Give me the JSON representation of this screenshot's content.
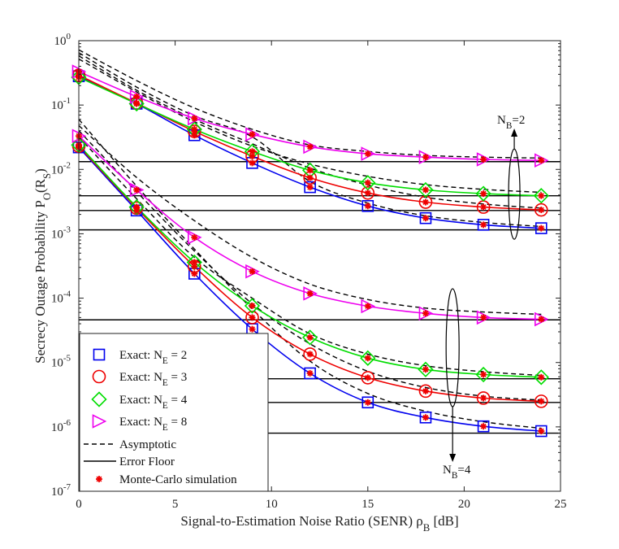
{
  "chart_data": {
    "type": "line",
    "xlabel": "Signal-to-Estimation Noise Ratio (SENR) ρB [dB]",
    "ylabel": "Secrecy Outage Probability PO(RS)",
    "xlim": [
      0,
      25
    ],
    "ylim": [
      1e-07,
      1
    ],
    "y_scale": "log",
    "grid": false,
    "legend_placement": "bottom-left",
    "x_ticks": [
      "0",
      "5",
      "10",
      "15",
      "20",
      "25"
    ],
    "y_ticks": [
      {
        "value": 1,
        "exp": "0"
      },
      {
        "value": 0.1,
        "exp": "-1"
      },
      {
        "value": 0.01,
        "exp": "-2"
      },
      {
        "value": 0.001,
        "exp": "-3"
      },
      {
        "value": 0.0001,
        "exp": "-4"
      },
      {
        "value": 1e-05,
        "exp": "-5"
      },
      {
        "value": 1e-06,
        "exp": "-6"
      },
      {
        "value": 1e-07,
        "exp": "-7"
      }
    ],
    "x": [
      0,
      3,
      6,
      9,
      12,
      15,
      18,
      21,
      24
    ],
    "annotations": [
      {
        "base": "N",
        "sub": "B",
        "rest": "=2"
      },
      {
        "base": "N",
        "sub": "B",
        "rest": "=4"
      }
    ],
    "legend": [
      {
        "text": "Exact: N",
        "sub": "E",
        "rest": " = 2",
        "marker": "square",
        "color": "#0000ee"
      },
      {
        "text": "Exact: N",
        "sub": "E",
        "rest": " = 3",
        "marker": "circle",
        "color": "#ee0000"
      },
      {
        "text": "Exact: N",
        "sub": "E",
        "rest": " = 4",
        "marker": "diamond",
        "color": "#00dd00"
      },
      {
        "text": "Exact: N",
        "sub": "E",
        "rest": " = 8",
        "marker": "triangle-right",
        "color": "#ee00ee"
      },
      {
        "text": "Asymptotic",
        "marker": "dashed-line",
        "color": "#000000"
      },
      {
        "text": "Error Floor",
        "marker": "solid-line",
        "color": "#000000"
      },
      {
        "text": "Monte-Carlo simulation",
        "marker": "star",
        "color": "#ee0000"
      }
    ],
    "series": [
      {
        "group": "NB=2",
        "NE": 2,
        "marker": "square",
        "color": "#0000ee",
        "values": [
          0.28,
          0.105,
          0.034,
          0.0126,
          0.0053,
          0.0027,
          0.00175,
          0.00138,
          0.00122
        ],
        "asymptotic": [
          0.65,
          0.19,
          0.068,
          0.032,
          0.0065,
          0.003,
          0.0019,
          0.0015,
          0.0013
        ],
        "error_floor": 0.00115
      },
      {
        "group": "NB=2",
        "NE": 3,
        "marker": "circle",
        "color": "#ee0000",
        "values": [
          0.29,
          0.107,
          0.039,
          0.016,
          0.0074,
          0.0043,
          0.0031,
          0.0026,
          0.00235
        ],
        "asymptotic": [
          0.58,
          0.17,
          0.06,
          0.025,
          0.0105,
          0.0057,
          0.0037,
          0.0029,
          0.0025
        ],
        "error_floor": 0.0023
      },
      {
        "group": "NB=2",
        "NE": 4,
        "marker": "diamond",
        "color": "#00dd00",
        "values": [
          0.27,
          0.105,
          0.042,
          0.019,
          0.0097,
          0.0062,
          0.0048,
          0.0042,
          0.0039
        ],
        "asymptotic": [
          0.52,
          0.16,
          0.055,
          0.023,
          0.0121,
          0.0078,
          0.0058,
          0.0049,
          0.0044
        ],
        "error_floor": 0.0039
      },
      {
        "group": "NB=2",
        "NE": 8,
        "marker": "triangle-right",
        "color": "#ee00ee",
        "values": [
          0.33,
          0.135,
          0.062,
          0.035,
          0.0225,
          0.0175,
          0.0155,
          0.0143,
          0.0138
        ],
        "asymptotic": [
          0.72,
          0.24,
          0.09,
          0.042,
          0.024,
          0.019,
          0.0165,
          0.0155,
          0.015
        ],
        "error_floor": 0.0132
      },
      {
        "group": "NB=4",
        "NE": 2,
        "marker": "square",
        "color": "#0000ee",
        "values": [
          0.022,
          0.0023,
          0.00024,
          3.3e-05,
          6.8e-06,
          2.4e-06,
          1.4e-06,
          1.02e-06,
          8.6e-07
        ],
        "asymptotic": [
          0.06,
          0.0055,
          0.00058,
          6.8e-05,
          1.05e-05,
          3.3e-06,
          1.75e-06,
          1.2e-06,
          9.5e-07
        ],
        "error_floor": 8e-07
      },
      {
        "group": "NB=4",
        "NE": 3,
        "marker": "circle",
        "color": "#ee0000",
        "values": [
          0.023,
          0.0025,
          0.00031,
          5e-05,
          1.35e-05,
          5.8e-06,
          3.6e-06,
          2.8e-06,
          2.5e-06
        ],
        "asymptotic": [
          0.04,
          0.0045,
          0.00054,
          8.2e-05,
          1.95e-05,
          7.3e-06,
          4.1e-06,
          3e-06,
          2.6e-06
        ],
        "error_floor": 2.4e-06
      },
      {
        "group": "NB=4",
        "NE": 4,
        "marker": "diamond",
        "color": "#00dd00",
        "values": [
          0.024,
          0.0026,
          0.00036,
          7.6e-05,
          2.45e-05,
          1.17e-05,
          7.8e-06,
          6.5e-06,
          5.9e-06
        ],
        "asymptotic": [
          0.032,
          0.0035,
          0.00043,
          0.0001,
          2.8e-05,
          1.35e-05,
          8.9e-06,
          7.2e-06,
          6.3e-06
        ],
        "error_floor": 5.6e-06
      },
      {
        "group": "NB=4",
        "NE": 8,
        "marker": "triangle-right",
        "color": "#ee00ee",
        "values": [
          0.033,
          0.0048,
          0.00088,
          0.00026,
          0.000118,
          7.5e-05,
          5.8e-05,
          5e-05,
          4.7e-05
        ],
        "asymptotic": [
          0.048,
          0.0075,
          0.0016,
          0.00043,
          0.000165,
          9.5e-05,
          7e-05,
          6.1e-05,
          5.6e-05
        ],
        "error_floor": 4.6e-05
      }
    ]
  }
}
